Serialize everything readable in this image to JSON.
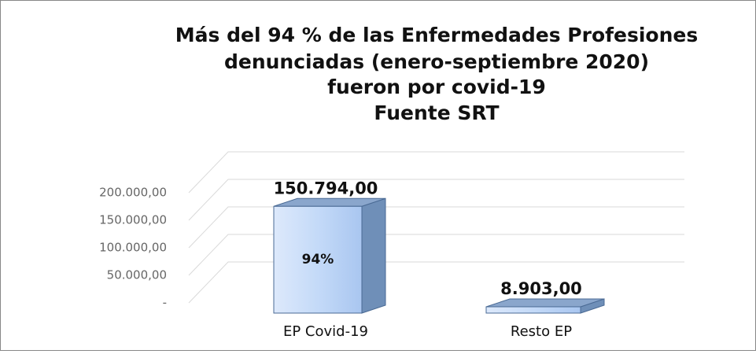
{
  "chart_data": {
    "type": "bar3d",
    "title": [
      "Más del 94 % de las Enfermedades Profesiones",
      "denunciadas (enero-septiembre 2020)",
      "fueron por covid-19",
      "Fuente SRT"
    ],
    "categories": [
      "EP Covid-19",
      "Resto EP"
    ],
    "values": [
      150794,
      8903
    ],
    "value_labels": [
      "150.794,00",
      "8.903,00"
    ],
    "annotation": "94%",
    "color": "#bcd5f7",
    "ylim": [
      0,
      200000
    ],
    "yticks": [
      {
        "value": 0,
        "label": "-"
      },
      {
        "value": 50000,
        "label": "50.000,00"
      },
      {
        "value": 100000,
        "label": "100.000,00"
      },
      {
        "value": 150000,
        "label": "150.000,00"
      },
      {
        "value": 200000,
        "label": "200.000,00"
      }
    ],
    "grid": true
  }
}
